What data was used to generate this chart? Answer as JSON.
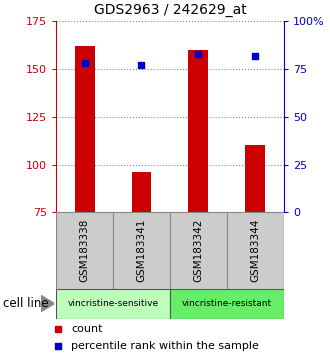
{
  "title": "GDS2963 / 242629_at",
  "samples": [
    "GSM183338",
    "GSM183341",
    "GSM183342",
    "GSM183344"
  ],
  "bar_values": [
    162,
    96,
    160,
    110
  ],
  "percentile_values": [
    78,
    77,
    83,
    82
  ],
  "bar_color": "#cc0000",
  "percentile_color": "#0000cc",
  "ylim_left": [
    75,
    175
  ],
  "ylim_right": [
    0,
    100
  ],
  "yticks_left": [
    75,
    100,
    125,
    150,
    175
  ],
  "yticks_right": [
    0,
    25,
    50,
    75,
    100
  ],
  "ytick_labels_right": [
    "0",
    "25",
    "50",
    "75",
    "100%"
  ],
  "groups": [
    {
      "label": "vincristine-sensitive",
      "indices": [
        0,
        1
      ],
      "color": "#bbffbb"
    },
    {
      "label": "vincristine-resistant",
      "indices": [
        2,
        3
      ],
      "color": "#66ee66"
    }
  ],
  "group_label": "cell line",
  "legend_count_label": "count",
  "legend_percentile_label": "percentile rank within the sample",
  "bar_width": 0.35,
  "sample_box_color": "#cccccc",
  "sample_box_linecolor": "#888888",
  "dotted_line_color": "#555555",
  "background_color": "#ffffff",
  "axis_left_color": "#cc0000",
  "axis_right_color": "#0000cc"
}
